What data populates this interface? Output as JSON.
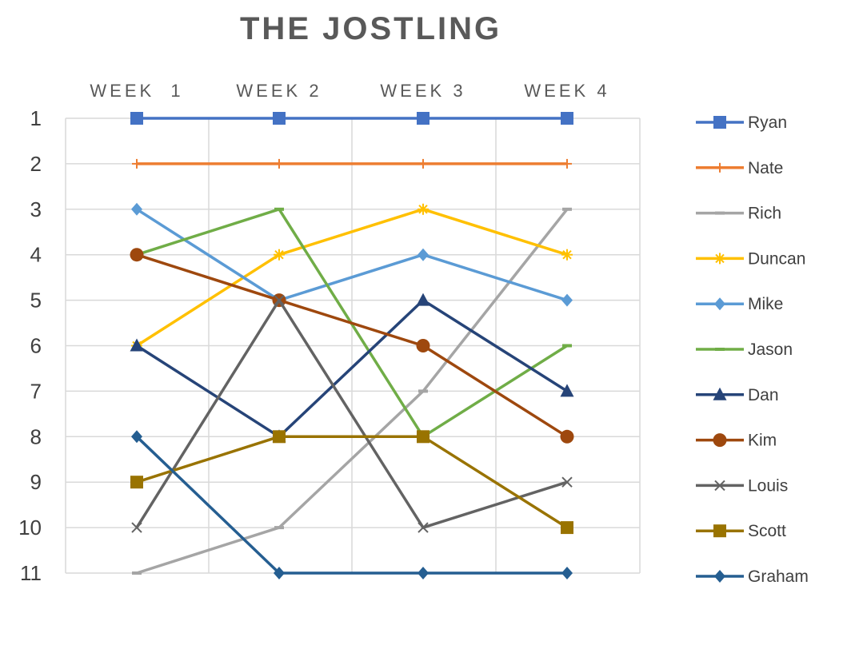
{
  "chart_data": {
    "type": "line",
    "title": "THE JOSTLING",
    "categories": [
      "WEEK  1",
      "WEEK 2",
      "WEEK 3",
      "WEEK 4"
    ],
    "y_ticks": [
      "1",
      "2",
      "3",
      "4",
      "5",
      "6",
      "7",
      "8",
      "9",
      "10",
      "11"
    ],
    "ylim": [
      1,
      11
    ],
    "y_inverted": true,
    "grid": true,
    "legend_position": "right",
    "series": [
      {
        "name": "Ryan",
        "values": [
          1,
          1,
          1,
          1
        ],
        "color": "#4472C4",
        "marker": "square"
      },
      {
        "name": "Nate",
        "values": [
          2,
          2,
          2,
          2
        ],
        "color": "#ED7D31",
        "marker": "plus"
      },
      {
        "name": "Rich",
        "values": [
          11,
          10,
          7,
          3
        ],
        "color": "#A5A5A5",
        "marker": "dash"
      },
      {
        "name": "Duncan",
        "values": [
          6,
          4,
          3,
          4
        ],
        "color": "#FFC000",
        "marker": "star"
      },
      {
        "name": "Mike",
        "values": [
          3,
          5,
          4,
          5
        ],
        "color": "#5B9BD5",
        "marker": "diamond"
      },
      {
        "name": "Jason",
        "values": [
          4,
          3,
          8,
          6
        ],
        "color": "#70AD47",
        "marker": "dash"
      },
      {
        "name": "Dan",
        "values": [
          6,
          8,
          5,
          7
        ],
        "color": "#264478",
        "marker": "triangle"
      },
      {
        "name": "Kim",
        "values": [
          4,
          5,
          6,
          8
        ],
        "color": "#9E480E",
        "marker": "circle"
      },
      {
        "name": "Louis",
        "values": [
          10,
          5,
          10,
          9
        ],
        "color": "#636363",
        "marker": "x"
      },
      {
        "name": "Scott",
        "values": [
          9,
          8,
          8,
          10
        ],
        "color": "#997300",
        "marker": "square"
      },
      {
        "name": "Graham",
        "values": [
          8,
          11,
          11,
          11
        ],
        "color": "#255E91",
        "marker": "diamond"
      }
    ]
  }
}
